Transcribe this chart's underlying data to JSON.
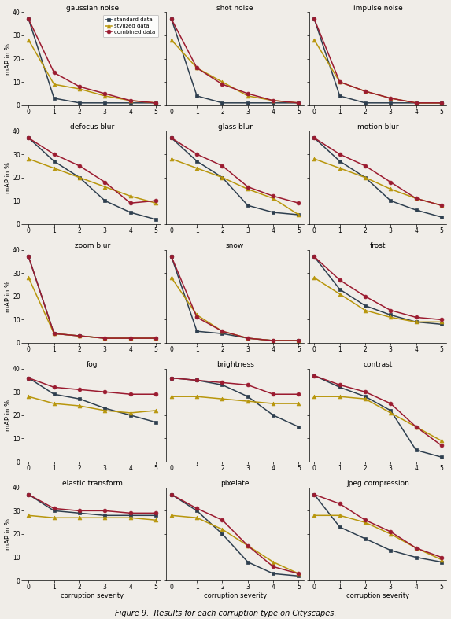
{
  "subplots": [
    {
      "title": "gaussian noise",
      "standard": [
        37,
        3,
        1,
        1,
        1,
        1
      ],
      "stylized": [
        28,
        9,
        7,
        4,
        2,
        1
      ],
      "combined": [
        37,
        14,
        8,
        5,
        2,
        1
      ]
    },
    {
      "title": "shot noise",
      "standard": [
        37,
        4,
        1,
        1,
        1,
        1
      ],
      "stylized": [
        28,
        16,
        10,
        4,
        2,
        1
      ],
      "combined": [
        37,
        16,
        9,
        5,
        2,
        1
      ]
    },
    {
      "title": "impulse noise",
      "standard": [
        37,
        4,
        1,
        1,
        1,
        1
      ],
      "stylized": [
        28,
        10,
        6,
        3,
        1,
        1
      ],
      "combined": [
        37,
        10,
        6,
        3,
        1,
        1
      ]
    },
    {
      "title": "defocus blur",
      "standard": [
        37,
        27,
        20,
        10,
        5,
        2
      ],
      "stylized": [
        28,
        24,
        20,
        16,
        12,
        9
      ],
      "combined": [
        37,
        30,
        25,
        18,
        9,
        10
      ]
    },
    {
      "title": "glass blur",
      "standard": [
        37,
        27,
        20,
        8,
        5,
        4
      ],
      "stylized": [
        28,
        24,
        20,
        15,
        11,
        4
      ],
      "combined": [
        37,
        30,
        25,
        16,
        12,
        9
      ]
    },
    {
      "title": "motion blur",
      "standard": [
        37,
        27,
        20,
        10,
        6,
        3
      ],
      "stylized": [
        28,
        24,
        20,
        15,
        11,
        8
      ],
      "combined": [
        37,
        30,
        25,
        18,
        11,
        8
      ]
    },
    {
      "title": "zoom blur",
      "standard": [
        37,
        4,
        3,
        2,
        2,
        2
      ],
      "stylized": [
        28,
        4,
        3,
        2,
        2,
        2
      ],
      "combined": [
        37,
        4,
        3,
        2,
        2,
        2
      ]
    },
    {
      "title": "snow",
      "standard": [
        37,
        5,
        4,
        2,
        1,
        1
      ],
      "stylized": [
        28,
        12,
        5,
        2,
        1,
        1
      ],
      "combined": [
        37,
        11,
        5,
        2,
        1,
        1
      ]
    },
    {
      "title": "frost",
      "standard": [
        37,
        23,
        16,
        12,
        9,
        8
      ],
      "stylized": [
        28,
        21,
        14,
        11,
        9,
        9
      ],
      "combined": [
        37,
        27,
        20,
        14,
        11,
        10
      ]
    },
    {
      "title": "fog",
      "standard": [
        36,
        29,
        27,
        23,
        20,
        17
      ],
      "stylized": [
        28,
        25,
        24,
        22,
        21,
        22
      ],
      "combined": [
        36,
        32,
        31,
        30,
        29,
        29
      ]
    },
    {
      "title": "brightness",
      "standard": [
        36,
        35,
        33,
        28,
        20,
        15
      ],
      "stylized": [
        28,
        28,
        27,
        26,
        25,
        25
      ],
      "combined": [
        36,
        35,
        34,
        33,
        29,
        29
      ]
    },
    {
      "title": "contrast",
      "standard": [
        37,
        32,
        28,
        22,
        5,
        2
      ],
      "stylized": [
        28,
        28,
        27,
        21,
        15,
        9
      ],
      "combined": [
        37,
        33,
        30,
        25,
        15,
        7
      ]
    },
    {
      "title": "elastic transform",
      "standard": [
        37,
        30,
        29,
        28,
        28,
        28
      ],
      "stylized": [
        28,
        27,
        27,
        27,
        27,
        26
      ],
      "combined": [
        37,
        31,
        30,
        30,
        29,
        29
      ]
    },
    {
      "title": "pixelate",
      "standard": [
        37,
        30,
        20,
        8,
        3,
        2
      ],
      "stylized": [
        28,
        27,
        22,
        15,
        8,
        3
      ],
      "combined": [
        37,
        31,
        26,
        15,
        6,
        3
      ]
    },
    {
      "title": "jpeg compression",
      "standard": [
        37,
        23,
        18,
        13,
        10,
        8
      ],
      "stylized": [
        28,
        28,
        25,
        20,
        14,
        9
      ],
      "combined": [
        37,
        33,
        26,
        21,
        14,
        10
      ]
    }
  ],
  "colors": {
    "standard": "#2e3f4f",
    "stylized": "#b8960c",
    "combined": "#9b1b30"
  },
  "markers": {
    "standard": "s",
    "stylized": "^",
    "combined": "o"
  },
  "xlabel": "corruption severity",
  "ylabel": "mAP in %",
  "ylim": [
    0,
    40
  ],
  "xlim": [
    -0.2,
    5.2
  ],
  "fig_caption": "Figure 9.  Results for each corruption type on Cityscapes.",
  "background_color": "#f0ede8"
}
